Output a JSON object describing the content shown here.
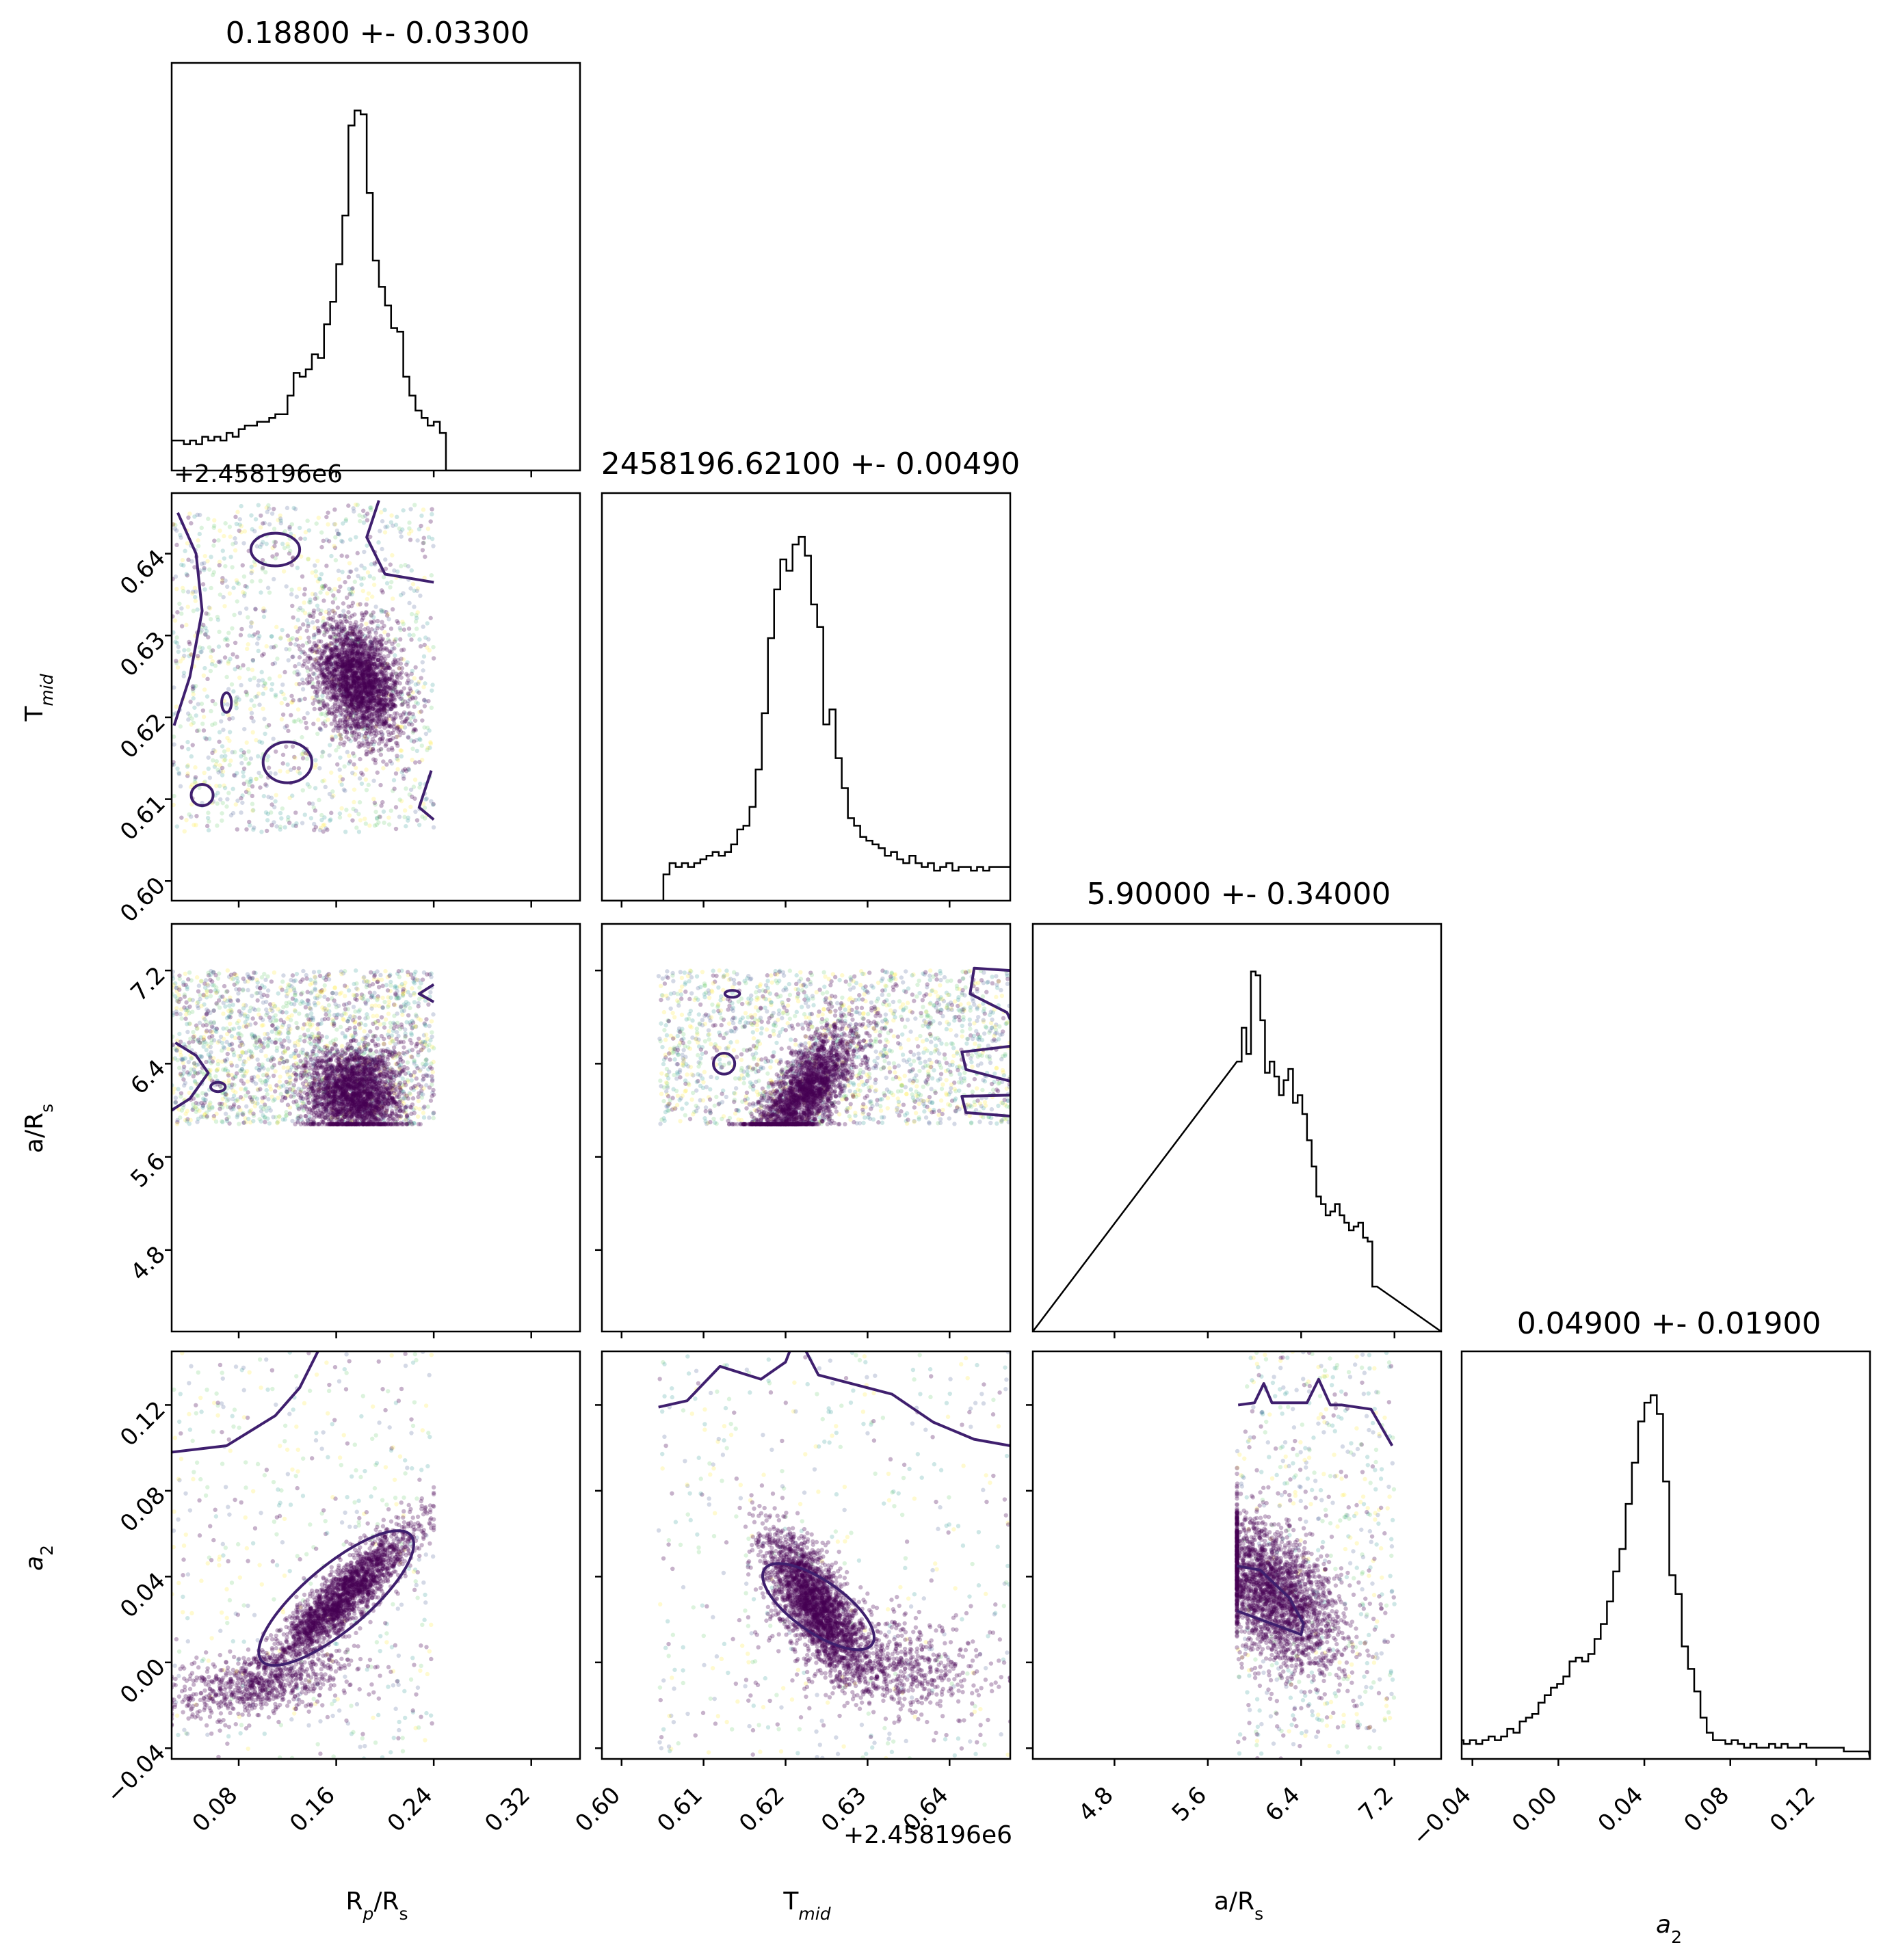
{
  "figure": {
    "type": "corner_plot"
  },
  "chart_data": {
    "type": "corner",
    "parameters": [
      {
        "name": "R_p/R_s",
        "label_main": "R",
        "label_sub": "p",
        "label_tail": "/R",
        "label_tail_sub": "s",
        "range": [
          0.025,
          0.36
        ],
        "ticks": [
          0.08,
          0.16,
          0.24,
          0.32
        ],
        "tick_labels": [
          "0.08",
          "0.16",
          "0.24",
          "0.32"
        ],
        "title": "0.18800 +- 0.03300"
      },
      {
        "name": "T_mid",
        "label_main": "T",
        "label_sub": "mid",
        "label_tail": "",
        "label_tail_sub": "",
        "range": [
          0.5976,
          0.6474
        ],
        "ticks": [
          0.6,
          0.61,
          0.62,
          0.63,
          0.64
        ],
        "tick_labels": [
          "0.60",
          "0.61",
          "0.62",
          "0.63",
          "0.64"
        ],
        "offset_text": "+2.458196e6",
        "title": "2458196.62100 +- 0.00490"
      },
      {
        "name": "a/R_s",
        "label_main": "a/R",
        "label_sub": "s",
        "label_tail": "",
        "label_tail_sub": "",
        "range": [
          4.1,
          7.6
        ],
        "ticks": [
          4.8,
          5.6,
          6.4,
          7.2
        ],
        "tick_labels": [
          "4.8",
          "5.6",
          "6.4",
          "7.2"
        ],
        "title": "5.90000 +- 0.34000"
      },
      {
        "name": "a_2",
        "label_main": "a",
        "label_sub": "2",
        "label_tail": "",
        "label_tail_sub": "",
        "label_italic": true,
        "range": [
          -0.045,
          0.145
        ],
        "ticks": [
          -0.04,
          0.0,
          0.04,
          0.08,
          0.12
        ],
        "tick_labels": [
          "−0.04",
          "0.00",
          "0.04",
          "0.08",
          "0.12"
        ],
        "title": "0.04900 +- 0.01900"
      }
    ],
    "histograms": [
      {
        "param": 0,
        "x_lo": 0.025,
        "bin_width": 0.005,
        "ymax": 1.0,
        "counts": [
          0.08,
          0.08,
          0.07,
          0.08,
          0.07,
          0.09,
          0.08,
          0.09,
          0.08,
          0.1,
          0.09,
          0.11,
          0.12,
          0.12,
          0.13,
          0.13,
          0.14,
          0.15,
          0.15,
          0.2,
          0.26,
          0.25,
          0.27,
          0.31,
          0.3,
          0.39,
          0.45,
          0.55,
          0.68,
          0.92,
          0.96,
          0.95,
          0.74,
          0.56,
          0.49,
          0.44,
          0.38,
          0.37,
          0.25,
          0.2,
          0.16,
          0.14,
          0.12,
          0.13,
          0.1,
          0.0,
          0.0,
          0.0,
          0.0,
          0.0,
          0.0,
          0.0,
          0.0,
          0.0,
          0.0,
          0.0,
          0.0,
          0.0,
          0.0,
          0.0,
          0.0,
          0.0,
          0.0,
          0.0,
          0.0,
          0.0,
          0.0
        ]
      },
      {
        "param": 1,
        "x_lo": 0.5976,
        "bin_width": 0.00075,
        "ymax": 1.0,
        "counts": [
          0.0,
          0.0,
          0.0,
          0.0,
          0.0,
          0.0,
          0.0,
          0.0,
          0.0,
          0.0,
          0.07,
          0.1,
          0.09,
          0.1,
          0.09,
          0.1,
          0.11,
          0.12,
          0.13,
          0.12,
          0.13,
          0.15,
          0.19,
          0.2,
          0.25,
          0.35,
          0.5,
          0.7,
          0.83,
          0.91,
          0.88,
          0.95,
          0.97,
          0.92,
          0.79,
          0.73,
          0.47,
          0.51,
          0.38,
          0.3,
          0.22,
          0.2,
          0.17,
          0.16,
          0.15,
          0.14,
          0.12,
          0.13,
          0.11,
          0.1,
          0.12,
          0.1,
          0.09,
          0.1,
          0.08,
          0.09,
          0.1,
          0.08,
          0.09,
          0.09,
          0.08,
          0.09,
          0.08,
          0.09,
          0.09,
          0.09,
          0.09
        ]
      },
      {
        "param": 2,
        "x_lo": 5.85,
        "bin_width": 0.04,
        "ymax": 1.0,
        "counts": [
          0.72,
          0.81,
          0.74,
          0.96,
          0.95,
          0.83,
          0.69,
          0.72,
          0.68,
          0.63,
          0.67,
          0.7,
          0.61,
          0.63,
          0.58,
          0.51,
          0.44,
          0.36,
          0.34,
          0.31,
          0.32,
          0.34,
          0.31,
          0.29,
          0.27,
          0.28,
          0.29,
          0.25,
          0.24,
          0.12
        ]
      },
      {
        "param": 3,
        "x_lo": -0.047,
        "bin_width": 0.0029,
        "ymax": 1.0,
        "counts": [
          0.05,
          0.04,
          0.05,
          0.04,
          0.05,
          0.06,
          0.05,
          0.06,
          0.08,
          0.07,
          0.1,
          0.11,
          0.12,
          0.15,
          0.17,
          0.19,
          0.2,
          0.22,
          0.26,
          0.27,
          0.26,
          0.28,
          0.32,
          0.36,
          0.42,
          0.5,
          0.56,
          0.68,
          0.79,
          0.9,
          0.95,
          0.97,
          0.92,
          0.74,
          0.49,
          0.44,
          0.3,
          0.24,
          0.18,
          0.11,
          0.07,
          0.05,
          0.05,
          0.04,
          0.05,
          0.04,
          0.03,
          0.04,
          0.03,
          0.03,
          0.04,
          0.03,
          0.04,
          0.03,
          0.03,
          0.04,
          0.03,
          0.03,
          0.03,
          0.03,
          0.03,
          0.03,
          0.02,
          0.02,
          0.02,
          0.02
        ]
      }
    ],
    "scatter_panels": [
      {
        "x": 0,
        "y": 1,
        "fill": {
          "x": [
            0.025,
            0.24
          ],
          "y": [
            0.606,
            0.646
          ],
          "n": 1400
        },
        "clusters": [
          {
            "cx": 0.178,
            "cy": 0.6245,
            "sx": 0.018,
            "sy": 0.0035,
            "rho": -0.35,
            "n": 2400
          }
        ],
        "contours": [
          {
            "type": "ellipse",
            "cx": 0.12,
            "cy": 0.6145,
            "rx": 0.02,
            "ry": 0.0025,
            "angle": 0
          },
          {
            "type": "ellipse",
            "cx": 0.11,
            "cy": 0.6405,
            "rx": 0.02,
            "ry": 0.002,
            "angle": 0
          },
          {
            "type": "ellipse",
            "cx": 0.05,
            "cy": 0.6105,
            "rx": 0.009,
            "ry": 0.0013,
            "angle": 0
          },
          {
            "type": "ellipse",
            "cx": 0.07,
            "cy": 0.6218,
            "rx": 0.004,
            "ry": 0.0012,
            "angle": 0
          },
          {
            "type": "polyline",
            "points": [
              [
                0.03,
                0.645
              ],
              [
                0.045,
                0.64
              ],
              [
                0.05,
                0.633
              ],
              [
                0.04,
                0.625
              ],
              [
                0.027,
                0.619
              ]
            ]
          },
          {
            "type": "polyline",
            "points": [
              [
                0.24,
                0.6365
              ],
              [
                0.2,
                0.6375
              ],
              [
                0.185,
                0.642
              ],
              [
                0.195,
                0.6465
              ]
            ]
          },
          {
            "type": "polyline",
            "points": [
              [
                0.24,
                0.6075
              ],
              [
                0.228,
                0.609
              ],
              [
                0.238,
                0.6135
              ]
            ]
          }
        ]
      },
      {
        "x": 0,
        "y": 2,
        "fill": {
          "x": [
            0.025,
            0.24
          ],
          "y": [
            5.88,
            7.2
          ],
          "n": 1800
        },
        "clusters": [
          {
            "cx": 0.175,
            "cy": 6.15,
            "sx": 0.02,
            "sy": 0.2,
            "rho": 0.0,
            "n": 2200
          }
        ],
        "contours": [
          {
            "type": "polyline",
            "points": [
              [
                0.028,
                6.58
              ],
              [
                0.045,
                6.47
              ],
              [
                0.055,
                6.32
              ],
              [
                0.04,
                6.1
              ],
              [
                0.025,
                6.0
              ]
            ]
          },
          {
            "type": "ellipse",
            "cx": 0.063,
            "cy": 6.2,
            "rx": 0.006,
            "ry": 0.04,
            "angle": 0
          },
          {
            "type": "polyline",
            "points": [
              [
                0.24,
                7.08
              ],
              [
                0.228,
                7.0
              ],
              [
                0.24,
                6.93
              ]
            ]
          }
        ]
      },
      {
        "x": 1,
        "y": 2,
        "fill": {
          "x": [
            0.6045,
            0.6474
          ],
          "y": [
            5.88,
            7.2
          ],
          "n": 1800
        },
        "clusters": [
          {
            "cx": 0.6225,
            "cy": 6.15,
            "sx": 0.003,
            "sy": 0.27,
            "rho": 0.7,
            "n": 2200
          }
        ],
        "contours": [
          {
            "type": "ellipse",
            "cx": 0.6125,
            "cy": 6.4,
            "rx": 0.0013,
            "ry": 0.09,
            "angle": 0
          },
          {
            "type": "ellipse",
            "cx": 0.6135,
            "cy": 7.0,
            "rx": 0.0009,
            "ry": 0.03,
            "angle": 0
          },
          {
            "type": "polyline",
            "points": [
              [
                0.6474,
                7.2
              ],
              [
                0.643,
                7.22
              ],
              [
                0.6425,
                7.0
              ],
              [
                0.647,
                6.84
              ],
              [
                0.6474,
                6.78
              ]
            ]
          },
          {
            "type": "polyline",
            "points": [
              [
                0.6474,
                6.25
              ],
              [
                0.642,
                6.35
              ],
              [
                0.6415,
                6.5
              ],
              [
                0.6474,
                6.55
              ]
            ]
          },
          {
            "type": "polyline",
            "points": [
              [
                0.6474,
                5.95
              ],
              [
                0.642,
                5.98
              ],
              [
                0.6415,
                6.12
              ],
              [
                0.6474,
                6.13
              ]
            ]
          }
        ]
      },
      {
        "x": 0,
        "y": 3,
        "fill": {
          "x": [
            0.025,
            0.24
          ],
          "y": [
            -0.045,
            0.145
          ],
          "n": 500
        },
        "clusters": [
          {
            "cx": 0.165,
            "cy": 0.03,
            "sx": 0.03,
            "sy": 0.017,
            "rho": 0.9,
            "n": 2200
          },
          {
            "cx": 0.1,
            "cy": -0.01,
            "sx": 0.04,
            "sy": 0.008,
            "rho": 0.5,
            "n": 700
          }
        ],
        "contours": [
          {
            "type": "ellipse",
            "cx": 0.16,
            "cy": 0.03,
            "rx": 0.08,
            "ry": 0.015,
            "angle": -40
          },
          {
            "type": "polyline",
            "points": [
              [
                0.025,
                0.098
              ],
              [
                0.07,
                0.101
              ],
              [
                0.11,
                0.115
              ],
              [
                0.13,
                0.128
              ],
              [
                0.145,
                0.145
              ]
            ]
          }
        ]
      },
      {
        "x": 1,
        "y": 3,
        "fill": {
          "x": [
            0.6045,
            0.6474
          ],
          "y": [
            -0.045,
            0.145
          ],
          "n": 500
        },
        "clusters": [
          {
            "cx": 0.6235,
            "cy": 0.028,
            "sx": 0.003,
            "sy": 0.016,
            "rho": -0.7,
            "n": 2400
          },
          {
            "cx": 0.632,
            "cy": 0.0,
            "sx": 0.006,
            "sy": 0.012,
            "rho": -0.3,
            "n": 700
          }
        ],
        "contours": [
          {
            "type": "ellipse",
            "cx": 0.624,
            "cy": 0.026,
            "rx": 0.008,
            "ry": 0.012,
            "angle": 35
          },
          {
            "type": "polyline",
            "points": [
              [
                0.6045,
                0.119
              ],
              [
                0.608,
                0.122
              ],
              [
                0.612,
                0.138
              ],
              [
                0.617,
                0.132
              ],
              [
                0.62,
                0.14
              ],
              [
                0.6205,
                0.145
              ]
            ]
          },
          {
            "type": "polyline",
            "points": [
              [
                0.6225,
                0.145
              ],
              [
                0.624,
                0.134
              ],
              [
                0.628,
                0.13
              ],
              [
                0.633,
                0.125
              ],
              [
                0.638,
                0.112
              ],
              [
                0.643,
                0.104
              ],
              [
                0.6474,
                0.101
              ]
            ]
          }
        ]
      },
      {
        "x": 2,
        "y": 3,
        "fill": {
          "x": [
            5.85,
            7.2
          ],
          "y": [
            -0.045,
            0.145
          ],
          "n": 600
        },
        "clusters": [
          {
            "cx": 6.15,
            "cy": 0.032,
            "sx": 0.28,
            "sy": 0.018,
            "rho": -0.5,
            "n": 2400
          }
        ],
        "contours": [
          {
            "type": "polyline",
            "points": [
              [
                5.85,
                0.045
              ],
              [
                6.05,
                0.043
              ],
              [
                6.3,
                0.03
              ],
              [
                6.42,
                0.018
              ],
              [
                6.4,
                0.013
              ],
              [
                6.2,
                0.017
              ],
              [
                5.95,
                0.022
              ],
              [
                5.85,
                0.024
              ]
            ]
          },
          {
            "type": "polyline",
            "points": [
              [
                5.86,
                0.12
              ],
              [
                6.0,
                0.121
              ],
              [
                6.08,
                0.13
              ],
              [
                6.15,
                0.121
              ],
              [
                6.45,
                0.121
              ],
              [
                6.55,
                0.132
              ],
              [
                6.65,
                0.12
              ],
              [
                6.75,
                0.12
              ],
              [
                7.0,
                0.118
              ],
              [
                7.18,
                0.101
              ]
            ]
          }
        ]
      }
    ],
    "colors": {
      "scatter_main": "#440154",
      "scatter_noise": [
        "#440154",
        "#3b528b",
        "#21918c",
        "#5ec962",
        "#fde725"
      ],
      "contour": "#3f1f6e",
      "axes": "#000000"
    }
  }
}
